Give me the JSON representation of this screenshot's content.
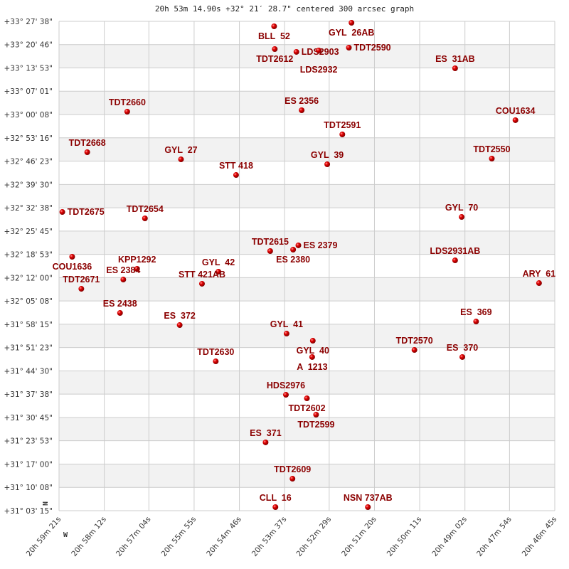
{
  "chart_data": {
    "type": "scatter",
    "title": "20h 53m 14.90s +32° 21′ 28.7\" centered 300 arcsec graph",
    "xlim": [
      "20h 59m 21s",
      "20h 46m 45s"
    ],
    "ylim": [
      "+31° 03' 15\"",
      "+33° 27' 38\""
    ],
    "grid": true,
    "orientation": {
      "north": "N",
      "west": "W"
    },
    "colors": {
      "point": "#dd0000",
      "label": "#8b0000",
      "band": "#f2f2f2",
      "grid": "#cccccc"
    },
    "x_ticks": [
      "20h 59m 21s",
      "20h 58m 12s",
      "20h 57m 04s",
      "20h 55m 55s",
      "20h 54m 46s",
      "20h 53m 37s",
      "20h 52m 29s",
      "20h 51m 20s",
      "20h 50m 11s",
      "20h 49m 02s",
      "20h 47m 54s",
      "20h 46m 45s"
    ],
    "y_ticks": [
      "+33° 27' 38\"",
      "+33° 20' 46\"",
      "+33° 13' 53\"",
      "+33° 07' 01\"",
      "+33° 00' 08\"",
      "+32° 53' 16\"",
      "+32° 46' 23\"",
      "+32° 39' 30\"",
      "+32° 32' 38\"",
      "+32° 25' 45\"",
      "+32° 18' 53\"",
      "+32° 12' 00\"",
      "+32° 05' 08\"",
      "+31° 58' 15\"",
      "+31° 51' 23\"",
      "+31° 44' 30\"",
      "+31° 37' 38\"",
      "+31° 30' 45\"",
      "+31° 23' 53\"",
      "+31° 17' 00\"",
      "+31° 10' 08\"",
      "+31° 03' 15\""
    ],
    "points": [
      {
        "name": "BLL  52",
        "ra": "20h 53m 53s",
        "dec": "+33° 26' 10\""
      },
      {
        "name": "GYL  26AB",
        "ra": "20h 51m 55s",
        "dec": "+33° 27' 13\""
      },
      {
        "name": "TDT2612",
        "ra": "20h 53m 52s",
        "dec": "+33° 19' 27\""
      },
      {
        "name": "LDS2903",
        "ra": "20h 53m 19s",
        "dec": "+33° 18' 37\""
      },
      {
        "name": "LDS2932",
        "ra": "20h 52m 45s",
        "dec": "+33° 19' 02\""
      },
      {
        "name": "TDT2590",
        "ra": "20h 51m 59s",
        "dec": "+33° 19' 52\""
      },
      {
        "name": "ES  31AB",
        "ra": "20h 49m 17s",
        "dec": "+33° 13' 47\""
      },
      {
        "name": "TDT2660",
        "ra": "20h 57m 37s",
        "dec": "+33° 00' 59\""
      },
      {
        "name": "ES 2356",
        "ra": "20h 53m 11s",
        "dec": "+33° 01' 24\""
      },
      {
        "name": "COU1634",
        "ra": "20h 47m 45s",
        "dec": "+32° 58' 28\""
      },
      {
        "name": "TDT2591",
        "ra": "20h 52m 09s",
        "dec": "+32° 54' 16\""
      },
      {
        "name": "TDT2668",
        "ra": "20h 58m 38s",
        "dec": "+32° 49' 01\""
      },
      {
        "name": "GYL  27",
        "ra": "20h 56m 15s",
        "dec": "+32° 46' 55\""
      },
      {
        "name": "TDT2550",
        "ra": "20h 48m 21s",
        "dec": "+32° 47' 08\""
      },
      {
        "name": "GYL  39",
        "ra": "20h 52m 32s",
        "dec": "+32° 45' 27\""
      },
      {
        "name": "STT 418",
        "ra": "20h 54m 51s",
        "dec": "+32° 42' 18\""
      },
      {
        "name": "TDT2675",
        "ra": "20h 59m 16s",
        "dec": "+32° 31' 23\""
      },
      {
        "name": "TDT2654",
        "ra": "20h 57m 10s",
        "dec": "+32° 29' 30\""
      },
      {
        "name": "GYL  70",
        "ra": "20h 49m 07s",
        "dec": "+32° 29' 55\""
      },
      {
        "name": "COU1636",
        "ra": "20h 59m 01s",
        "dec": "+32° 18' 10\""
      },
      {
        "name": "TDT2615",
        "ra": "20h 53m 59s",
        "dec": "+32° 19' 51\""
      },
      {
        "name": "ES 2380",
        "ra": "20h 53m 24s",
        "dec": "+32° 20' 16\""
      },
      {
        "name": "ES 2379",
        "ra": "20h 53m 16s",
        "dec": "+32° 21' 32\""
      },
      {
        "name": "LDS2931AB",
        "ra": "20h 49m 17s",
        "dec": "+32° 17' 07\""
      },
      {
        "name": "KPP1292",
        "ra": "20h 57m 22s",
        "dec": "+32° 14' 36\""
      },
      {
        "name": "ES 2384",
        "ra": "20h 57m 43s",
        "dec": "+32° 11' 27\""
      },
      {
        "name": "GYL  42",
        "ra": "20h 55m 18s",
        "dec": "+32° 13' 46\""
      },
      {
        "name": "STT 421AB",
        "ra": "20h 55m 43s",
        "dec": "+32° 10' 12\""
      },
      {
        "name": "TDT2671",
        "ra": "20h 58m 47s",
        "dec": "+32° 08' 43\""
      },
      {
        "name": "ARY  61",
        "ra": "20h 47m 09s",
        "dec": "+32° 10' 24\""
      },
      {
        "name": "ES 2438",
        "ra": "20h 57m 48s",
        "dec": "+32° 01' 35\""
      },
      {
        "name": "ES  372",
        "ra": "20h 56m 17s",
        "dec": "+31° 58' 01\""
      },
      {
        "name": "ES  369",
        "ra": "20h 48m 45s",
        "dec": "+31° 59' 04\""
      },
      {
        "name": "GYL  41",
        "ra": "20h 53m 34s",
        "dec": "+31° 55' 30\""
      },
      {
        "name": "GYL  40",
        "ra": "20h 52m 54s",
        "dec": "+31° 53' 24\""
      },
      {
        "name": "A  1213",
        "ra": "20h 52m 55s",
        "dec": "+31° 48' 35\""
      },
      {
        "name": "TDT2570",
        "ra": "20h 50m 19s",
        "dec": "+31° 50' 40\""
      },
      {
        "name": "ES  370",
        "ra": "20h 49m 06s",
        "dec": "+31° 48' 35\""
      },
      {
        "name": "TDT2630",
        "ra": "20h 55m 22s",
        "dec": "+31° 47' 19\""
      },
      {
        "name": "HDS2976",
        "ra": "20h 53m 35s",
        "dec": "+31° 37' 27\""
      },
      {
        "name": "TDT2602",
        "ra": "20h 53m 03s",
        "dec": "+31° 36' 24\""
      },
      {
        "name": "TDT2599",
        "ra": "20h 52m 49s",
        "dec": "+31° 31' 35\""
      },
      {
        "name": "ES  371",
        "ra": "20h 54m 06s",
        "dec": "+31° 23' 24\""
      },
      {
        "name": "TDT2609",
        "ra": "20h 53m 25s",
        "dec": "+31° 12' 41\""
      },
      {
        "name": "CLL  16",
        "ra": "20h 53m 51s",
        "dec": "+31° 04' 18\""
      },
      {
        "name": "NSN 737AB",
        "ra": "20h 51m 30s",
        "dec": "+31° 04' 18\""
      }
    ]
  }
}
